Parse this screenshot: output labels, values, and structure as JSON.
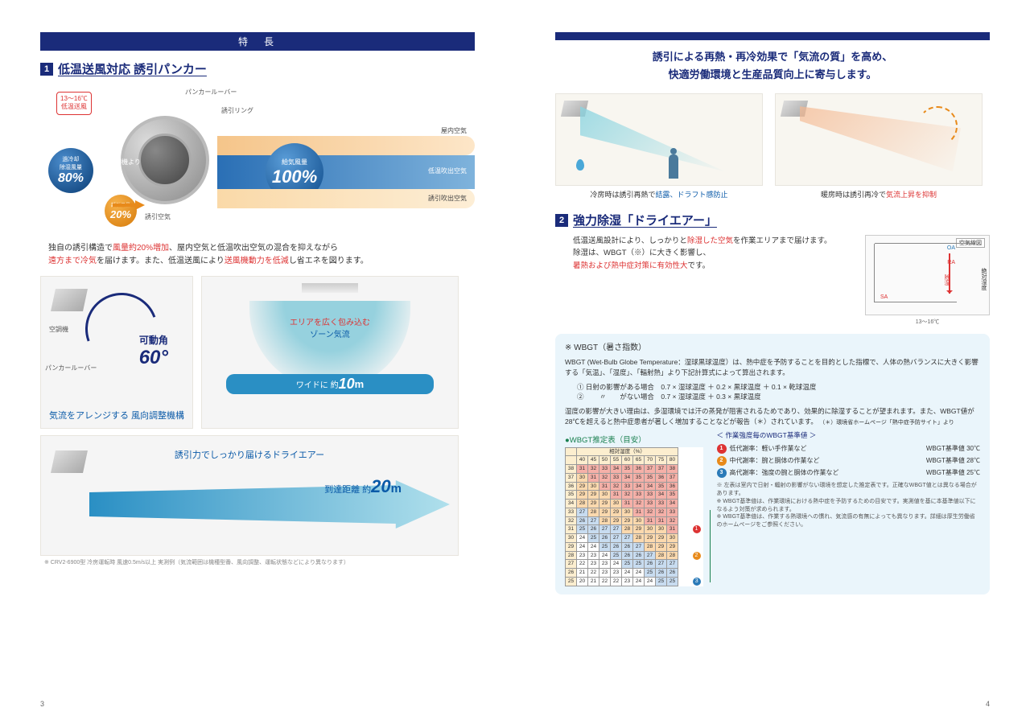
{
  "colors": {
    "navy": "#1a2b7a",
    "red": "#d33",
    "orange": "#e88a1a",
    "blue": "#0a5aa8",
    "teal": "#7ec8d8",
    "green": "#1a8050",
    "warm": "#f5b890"
  },
  "left": {
    "header": "特　長",
    "section1": {
      "num": "1",
      "title": "低温送風対応 誘引パンカー"
    },
    "diagram1": {
      "badge_red": {
        "line1": "13〜16℃",
        "line2": "低温送風"
      },
      "badge_80": {
        "label1": "過冷却",
        "label2": "除湿風量",
        "pct": "80%"
      },
      "badge_20": {
        "label": "誘引風量",
        "pct": "20%"
      },
      "supply": {
        "label": "給気風量",
        "pct": "100%"
      },
      "callouts": {
        "louver": "パンカールーバー",
        "ring": "誘引リング",
        "room_air": "屋内空気",
        "low_air": "低温吹出空気",
        "induced_air": "誘引吹出空気",
        "ac": "空調機より",
        "induce": "誘引空気"
      }
    },
    "desc1": {
      "p1a": "独自の誘引構造で",
      "p1b": "風量約20%増加",
      "p1c": "、屋内空気と低温吹出空気の混合を抑えながら",
      "p2a": "遠方まで冷気",
      "p2b": "を届けます。また、低温送風により",
      "p2c": "送風機動力を低減",
      "p2d": "し省エネを図ります。"
    },
    "panel1": {
      "callout_ac": "空調機",
      "callout_louver": "パンカールーバー",
      "angle_label": "可動角",
      "angle_value": "60°",
      "caption": "気流をアレンジする 風向調整機構"
    },
    "panel2": {
      "zone_line1": "エリアを広く包み込む",
      "zone_line2": "ゾーン気流",
      "wide_prefix": "ワイドに 約",
      "wide_value": "10",
      "wide_unit": "m"
    },
    "panel3": {
      "title": "誘引力でしっかり届けるドライエアー",
      "reach_prefix": "到達距離 約",
      "reach_value": "20",
      "reach_unit": "m",
      "footnote": "※ CRV2-6900型 冷房運転時 風速0.5m/s以上 実測例（気流範囲は機種型番、風向調整、運転状態などにより異なります）"
    },
    "page_num": "3"
  },
  "right": {
    "lead": {
      "l1": "誘引による再熱・再冷効果で「気流の質」を高め、",
      "l2": "快適労働環境と生産品質向上に寄与します。"
    },
    "cool_cap_a": "冷房時は誘引再熱で",
    "cool_cap_b": "結露、ドラフト感防止",
    "heat_cap_a": "暖房時は誘引再冷で",
    "heat_cap_b": "気流上昇を抑制",
    "section2": {
      "num": "2",
      "title": "強力除湿「ドライエアー」"
    },
    "sec2_text": {
      "t1": "低温送風設計により、しっかりと",
      "t2": "除湿した空気",
      "t3": "を作業エリアまで届けます。",
      "t4": "除湿は、WBGT（※）に大きく影響し、",
      "t5": "暑熱および熱中症対策に有効性大",
      "t6": "です。"
    },
    "psychro": {
      "title": "空気線図",
      "oa": "OA",
      "ra": "RA",
      "sa": "SA",
      "dehum": "除湿",
      "cap": "13〜16℃",
      "ylabel": "絶対湿度"
    },
    "wbgt": {
      "title": "※ WBGT（暑さ指数）",
      "desc": "WBGT (Wet-Bulb Globe Temperature：湿球黒球温度）は、熱中症を予防することを目的とした指標で、人体の熱バランスに大きく影響する「気温」、「湿度」、「輻射熱」より下記計算式によって算出されます。",
      "formula1": "① 日射の影響がある場合　0.7 × 湿球温度 ＋ 0.2 × 黒球温度 ＋ 0.1 × 乾球温度",
      "formula2": "② 　　〃　　がない場合　0.7 × 湿球温度 ＋ 0.3 × 黒球温度",
      "note": "湿度の影響が大きい理由は、多湿環境では汗の蒸発が阻害されるためであり、効果的に除湿することが望まれます。また、WBGT値が28℃を超えると熱中症患者が著しく増加することなどが報告（＊）されています。",
      "note_cite": "（＊）環境省ホームページ「熱中症予防サイト」より",
      "subtitle": "●WBGT推定表（目安）",
      "legend_title": "＜ 作業強度毎のWBGT基準値 ＞",
      "leg1": {
        "label": "低代謝率：軽い手作業など",
        "val": "WBGT基準値 30℃"
      },
      "leg2": {
        "label": "中代謝率：腕と胴体の作業など",
        "val": "WBGT基準値 28℃"
      },
      "leg3": {
        "label": "高代謝率：強度の腕と胴体の作業など",
        "val": "WBGT基準値 25℃"
      },
      "ln1": "※ 左表は室内で日射・輻射の影響がない環境を想定した推定表です。正確なWBGT値とは異なる場合があります。",
      "ln2": "※ WBGT基準値は、作業環境における熱中症を予防するための目安です。実測値を基に本基準値以下になるよう対策が求められます。",
      "ln3": "※ WBGT基準値は、作業する熱環境への慣れ、気流感の有無によっても異なります。詳細は厚生労働省のホームページをご参照ください。",
      "table": {
        "header_label": "相対湿度（%）",
        "cols": [
          "40",
          "45",
          "50",
          "55",
          "60",
          "65",
          "70",
          "75",
          "80"
        ],
        "rows": [
          {
            "h": "38",
            "c": [
              "31",
              "32",
              "33",
              "34",
              "35",
              "36",
              "37",
              "37",
              "38"
            ]
          },
          {
            "h": "37",
            "c": [
              "30",
              "31",
              "32",
              "33",
              "34",
              "35",
              "35",
              "36",
              "37"
            ]
          },
          {
            "h": "36",
            "c": [
              "29",
              "30",
              "31",
              "32",
              "33",
              "34",
              "34",
              "35",
              "36"
            ]
          },
          {
            "h": "35",
            "c": [
              "29",
              "29",
              "30",
              "31",
              "32",
              "33",
              "33",
              "34",
              "35"
            ]
          },
          {
            "h": "34",
            "c": [
              "28",
              "29",
              "29",
              "30",
              "31",
              "32",
              "33",
              "33",
              "34"
            ]
          },
          {
            "h": "33",
            "c": [
              "27",
              "28",
              "29",
              "29",
              "30",
              "31",
              "32",
              "32",
              "33"
            ]
          },
          {
            "h": "32",
            "c": [
              "26",
              "27",
              "28",
              "29",
              "29",
              "30",
              "31",
              "31",
              "32"
            ]
          },
          {
            "h": "31",
            "c": [
              "25",
              "26",
              "27",
              "27",
              "28",
              "29",
              "30",
              "30",
              "31"
            ]
          },
          {
            "h": "30",
            "c": [
              "24",
              "25",
              "26",
              "27",
              "27",
              "28",
              "29",
              "29",
              "30"
            ]
          },
          {
            "h": "29",
            "c": [
              "24",
              "24",
              "25",
              "26",
              "26",
              "27",
              "28",
              "29",
              "29"
            ]
          },
          {
            "h": "28",
            "c": [
              "23",
              "23",
              "24",
              "25",
              "26",
              "26",
              "27",
              "28",
              "28"
            ]
          },
          {
            "h": "27",
            "c": [
              "22",
              "23",
              "23",
              "24",
              "25",
              "25",
              "26",
              "27",
              "27"
            ]
          },
          {
            "h": "26",
            "c": [
              "21",
              "22",
              "23",
              "23",
              "24",
              "24",
              "25",
              "26",
              "26"
            ]
          },
          {
            "h": "25",
            "c": [
              "20",
              "21",
              "22",
              "22",
              "23",
              "24",
              "24",
              "25",
              "25"
            ]
          }
        ],
        "row_marker": {
          "31": "1",
          "28": "2",
          "25": "3"
        },
        "side_label": "気温（℃）"
      }
    },
    "page_num": "4"
  }
}
